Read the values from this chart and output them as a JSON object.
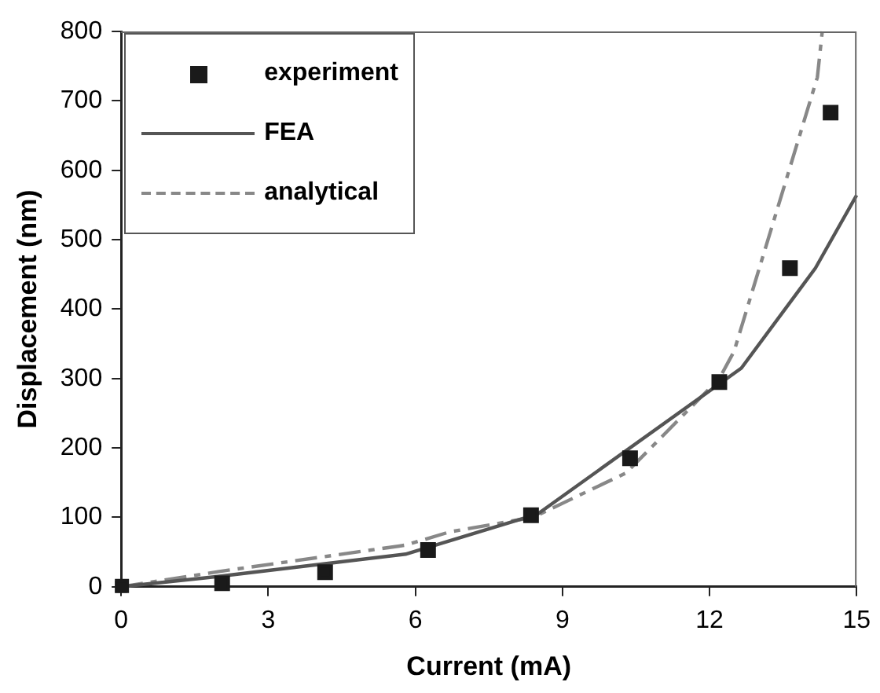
{
  "chart_data": {
    "type": "line",
    "xlabel": "Current (mA)",
    "ylabel": "Displacement (nm)",
    "xlim": [
      0,
      15
    ],
    "xticks": [
      0,
      3,
      6,
      9,
      12,
      15
    ],
    "ylim": [
      0,
      800
    ],
    "yticks": [
      0,
      100,
      200,
      300,
      400,
      500,
      600,
      700,
      800
    ],
    "grid": false,
    "legend": "top left",
    "series": [
      {
        "name": "experiment",
        "type": "scatter",
        "marker": "square",
        "color": "#1a1a1a",
        "x": [
          0,
          2.06,
          4.16,
          6.26,
          8.36,
          10.38,
          12.2,
          13.64,
          14.47
        ],
        "values": [
          0,
          5,
          21,
          53,
          103,
          185,
          295,
          459,
          683
        ]
      },
      {
        "name": "FEA",
        "marker": "none",
        "line_style": "solid",
        "color": "#555555",
        "x": [
          0,
          2,
          5.8,
          8.5,
          12.65,
          14.16,
          15
        ],
        "values": [
          0,
          15,
          47,
          105,
          315,
          459,
          564
        ]
      },
      {
        "name": "analytical",
        "marker": "none",
        "line_style": "dashed",
        "color": "#888888",
        "x": [
          0,
          2,
          5.8,
          6.7,
          8.4,
          10.3,
          12.2,
          12.5,
          14.2,
          14.3
        ],
        "values": [
          0,
          22,
          60,
          79,
          100,
          164,
          300,
          339,
          734,
          800
        ]
      }
    ]
  }
}
